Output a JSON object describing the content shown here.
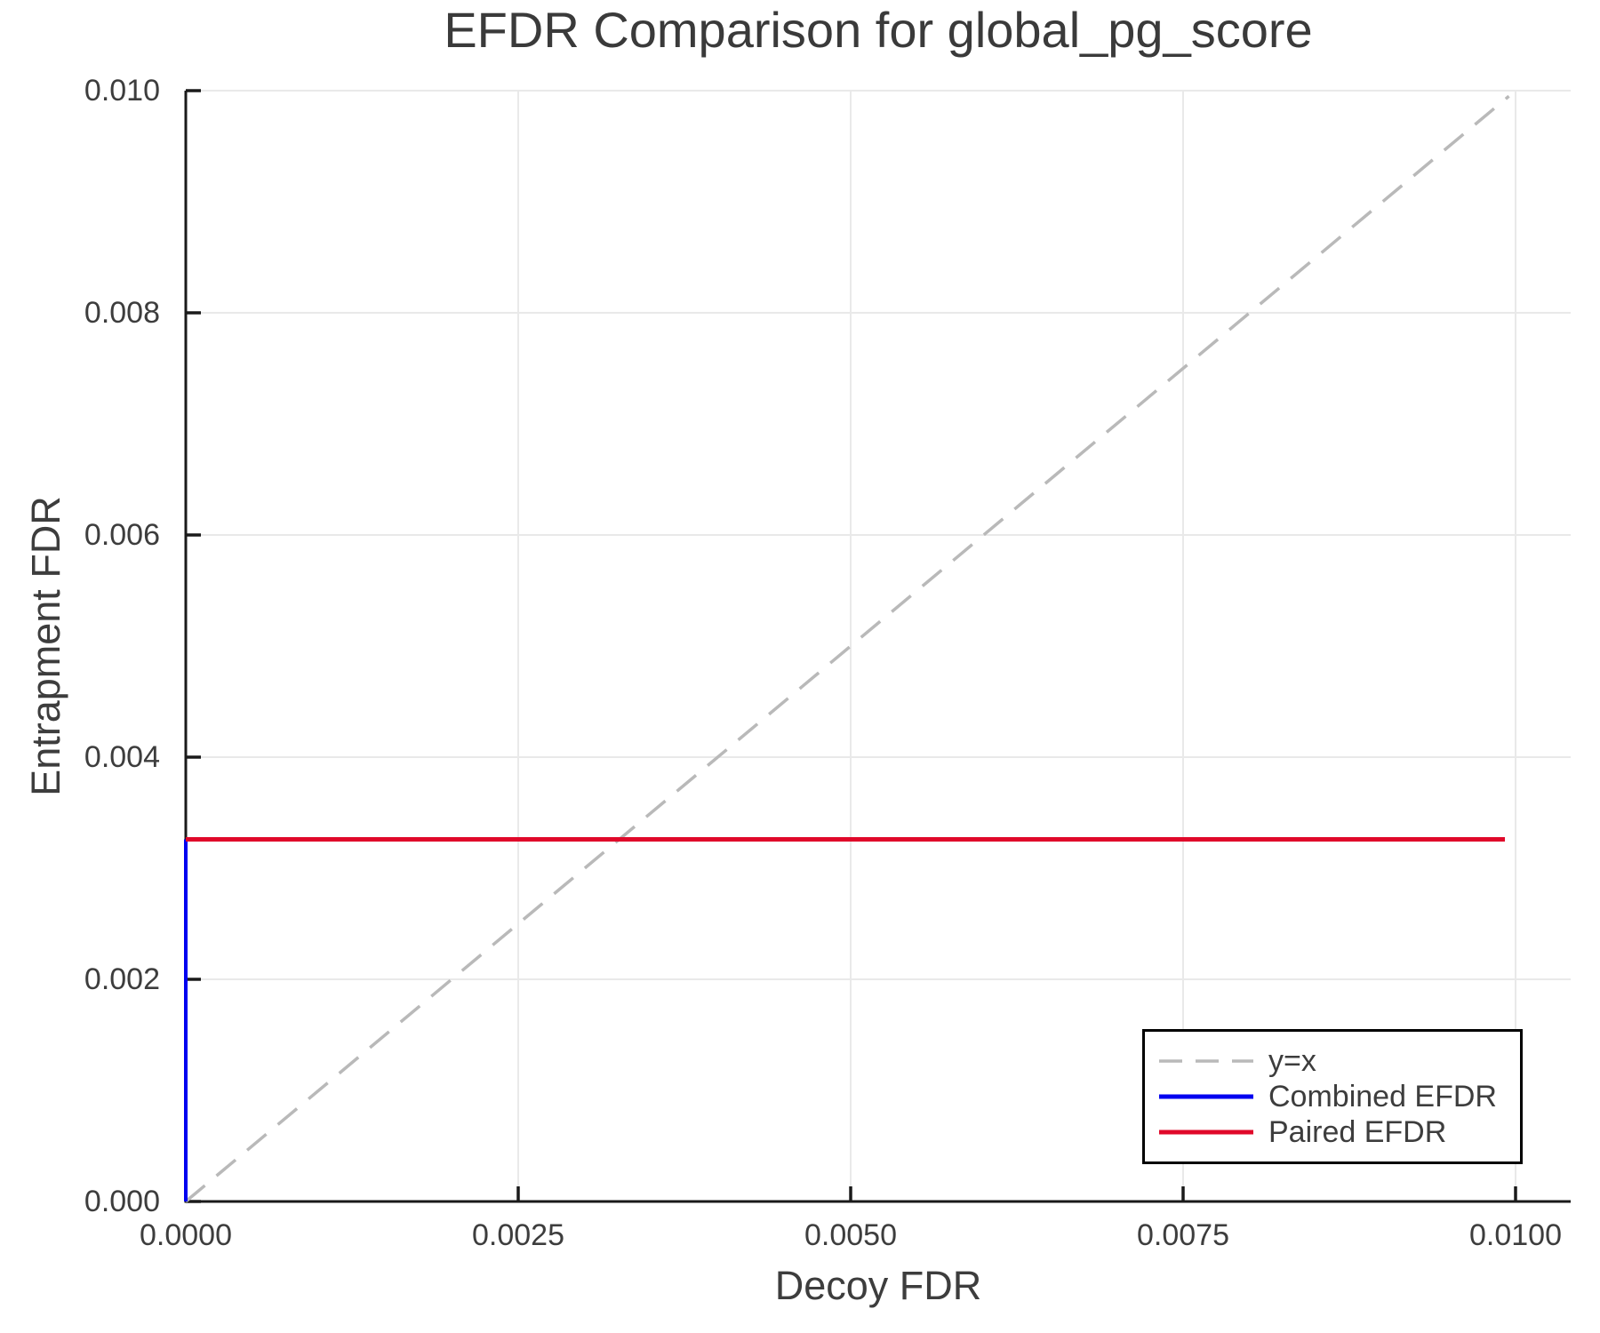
{
  "chart_data": {
    "type": "line",
    "title": "EFDR Comparison for global_pg_score",
    "xlabel": "Decoy FDR",
    "ylabel": "Entrapment FDR",
    "xlim": [
      0.0,
      0.01043
    ],
    "ylim": [
      0.0,
      0.01
    ],
    "grid": true,
    "x_ticks": {
      "values": [
        0.0,
        0.0025,
        0.005,
        0.0075,
        0.01
      ],
      "labels": [
        "0.0000",
        "0.0025",
        "0.0050",
        "0.0075",
        "0.0100"
      ]
    },
    "y_ticks": {
      "values": [
        0.0,
        0.002,
        0.004,
        0.006,
        0.008,
        0.01
      ],
      "labels": [
        "0.000",
        "0.002",
        "0.004",
        "0.006",
        "0.008",
        "0.010"
      ]
    },
    "series": [
      {
        "name": "y=x",
        "style": "dashed",
        "color": "#b9b9b9",
        "width": 3.5,
        "points": [
          [
            0.0,
            0.0
          ],
          [
            0.00995,
            0.00995
          ]
        ]
      },
      {
        "name": "Combined EFDR",
        "style": "solid",
        "color": "#0000f0",
        "width": 4,
        "points": [
          [
            0.0,
            0.0
          ],
          [
            0.0,
            0.00326
          ]
        ]
      },
      {
        "name": "Paired EFDR",
        "style": "solid",
        "color": "#e0082a",
        "width": 5,
        "points": [
          [
            0.0,
            0.00326
          ],
          [
            0.00992,
            0.00326
          ]
        ]
      }
    ],
    "legend": {
      "position": "lower right",
      "border_color": "#000000"
    },
    "colors": {
      "background": "#ffffff",
      "text": "#3d3d3d",
      "axis": "#1a1a1a",
      "grid": "#e9e9e9"
    }
  }
}
